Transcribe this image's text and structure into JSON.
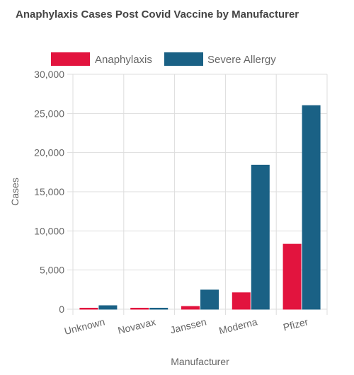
{
  "chart_data": {
    "type": "bar",
    "title": "Anaphylaxis Cases Post Covid Vaccine by Manufacturer",
    "xlabel": "Manufacturer",
    "ylabel": "Cases",
    "categories": [
      "Unknown",
      "Novavax",
      "Janssen",
      "Moderna",
      "Pfizer"
    ],
    "ylim": [
      0,
      30000
    ],
    "yticks": [
      "0",
      "5,000",
      "10,000",
      "15,000",
      "20,000",
      "25,000",
      "30,000"
    ],
    "ytick_values": [
      0,
      5000,
      10000,
      15000,
      20000,
      25000,
      30000
    ],
    "legend_position": "top",
    "grid": true,
    "series": [
      {
        "name": "Anaphylaxis",
        "color": "#e2143e",
        "values": [
          100,
          40,
          350,
          2100,
          8300
        ]
      },
      {
        "name": "Severe Allergy",
        "color": "#1a6185",
        "values": [
          450,
          60,
          2450,
          18400,
          26000
        ]
      }
    ]
  }
}
